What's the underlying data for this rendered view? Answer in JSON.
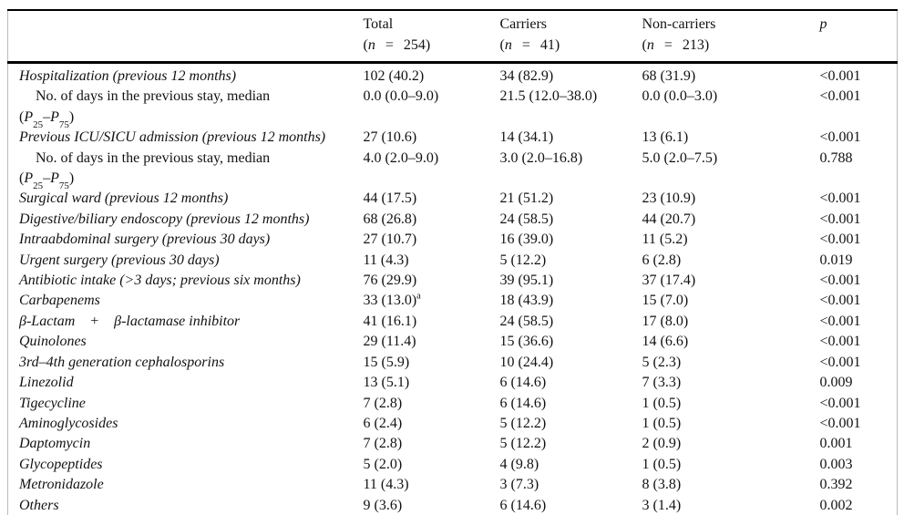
{
  "table": {
    "header": {
      "columns": [
        {
          "label": "Total",
          "n": "254"
        },
        {
          "label": "Carriers",
          "n": "41"
        },
        {
          "label": "Non-carriers",
          "n": "213"
        },
        {
          "label": "p"
        }
      ]
    },
    "symbols": {
      "open": "(",
      "n": "n",
      "eq": "=",
      "close": ")",
      "P": "P",
      "p25": "25",
      "dash": "–",
      "p75": "75"
    },
    "rows": [
      {
        "label": "Hospitalization (previous 12 months)",
        "italic": true,
        "indent": false,
        "wrap": false,
        "total": "102 (40.2)",
        "total_sup": "",
        "carriers": "34 (82.9)",
        "noncarriers": "68 (31.9)",
        "p": "<0.001"
      },
      {
        "label": "No. of days in the previous stay, median",
        "italic": false,
        "indent": true,
        "wrap": true,
        "total": "0.0 (0.0–9.0)",
        "total_sup": "",
        "carriers": "21.5 (12.0–38.0)",
        "noncarriers": "0.0 (0.0–3.0)",
        "p": "<0.001"
      },
      {
        "label": "Previous ICU/SICU admission (previous 12 months)",
        "italic": true,
        "indent": false,
        "wrap": false,
        "total": "27 (10.6)",
        "total_sup": "",
        "carriers": "14 (34.1)",
        "noncarriers": "13 (6.1)",
        "p": "<0.001"
      },
      {
        "label": "No. of days in the previous stay, median",
        "italic": false,
        "indent": true,
        "wrap": true,
        "total": "4.0 (2.0–9.0)",
        "total_sup": "",
        "carriers": "3.0 (2.0–16.8)",
        "noncarriers": "5.0 (2.0–7.5)",
        "p": "0.788"
      },
      {
        "label": "Surgical ward (previous 12 months)",
        "italic": true,
        "indent": false,
        "wrap": false,
        "total": "44 (17.5)",
        "total_sup": "",
        "carriers": "21 (51.2)",
        "noncarriers": "23 (10.9)",
        "p": "<0.001"
      },
      {
        "label": "Digestive/biliary endoscopy (previous 12 months)",
        "italic": true,
        "indent": false,
        "wrap": false,
        "total": "68 (26.8)",
        "total_sup": "",
        "carriers": "24 (58.5)",
        "noncarriers": "44 (20.7)",
        "p": "<0.001"
      },
      {
        "label": "Intraabdominal surgery (previous 30 days)",
        "italic": true,
        "indent": false,
        "wrap": false,
        "total": "27 (10.7)",
        "total_sup": "",
        "carriers": "16 (39.0)",
        "noncarriers": "11 (5.2)",
        "p": "<0.001"
      },
      {
        "label": "Urgent surgery (previous 30 days)",
        "italic": true,
        "indent": false,
        "wrap": false,
        "total": "11 (4.3)",
        "total_sup": "",
        "carriers": "5 (12.2)",
        "noncarriers": "6 (2.8)",
        "p": "0.019"
      },
      {
        "label": "Antibiotic intake (>3 days; previous six months)",
        "italic": true,
        "indent": false,
        "wrap": false,
        "total": "76 (29.9)",
        "total_sup": "",
        "carriers": "39 (95.1)",
        "noncarriers": "37 (17.4)",
        "p": "<0.001"
      },
      {
        "label": "Carbapenems",
        "italic": true,
        "indent": false,
        "wrap": false,
        "total": "33 (13.0)",
        "total_sup": "a",
        "carriers": "18 (43.9)",
        "noncarriers": "15 (7.0)",
        "p": "<0.001"
      },
      {
        "label": "β-Lactam + β-lactamase inhibitor",
        "italic": true,
        "indent": false,
        "wrap": false,
        "total": "41 (16.1)",
        "total_sup": "",
        "carriers": "24 (58.5)",
        "noncarriers": "17 (8.0)",
        "p": "<0.001"
      },
      {
        "label": "Quinolones",
        "italic": true,
        "indent": false,
        "wrap": false,
        "total": "29 (11.4)",
        "total_sup": "",
        "carriers": "15 (36.6)",
        "noncarriers": "14 (6.6)",
        "p": "<0.001"
      },
      {
        "label": "3rd–4th generation cephalosporins",
        "italic": true,
        "indent": false,
        "wrap": false,
        "total": "15 (5.9)",
        "total_sup": "",
        "carriers": "10 (24.4)",
        "noncarriers": "5 (2.3)",
        "p": "<0.001"
      },
      {
        "label": "Linezolid",
        "italic": true,
        "indent": false,
        "wrap": false,
        "total": "13 (5.1)",
        "total_sup": "",
        "carriers": "6 (14.6)",
        "noncarriers": "7 (3.3)",
        "p": "0.009"
      },
      {
        "label": "Tigecycline",
        "italic": true,
        "indent": false,
        "wrap": false,
        "total": "7 (2.8)",
        "total_sup": "",
        "carriers": "6 (14.6)",
        "noncarriers": "1 (0.5)",
        "p": "<0.001"
      },
      {
        "label": "Aminoglycosides",
        "italic": true,
        "indent": false,
        "wrap": false,
        "total": "6 (2.4)",
        "total_sup": "",
        "carriers": "5 (12.2)",
        "noncarriers": "1 (0.5)",
        "p": "<0.001"
      },
      {
        "label": "Daptomycin",
        "italic": true,
        "indent": false,
        "wrap": false,
        "total": "7 (2.8)",
        "total_sup": "",
        "carriers": "5 (12.2)",
        "noncarriers": "2 (0.9)",
        "p": "0.001"
      },
      {
        "label": "Glycopeptides",
        "italic": true,
        "indent": false,
        "wrap": false,
        "total": "5 (2.0)",
        "total_sup": "",
        "carriers": "4 (9.8)",
        "noncarriers": "1 (0.5)",
        "p": "0.003"
      },
      {
        "label": "Metronidazole",
        "italic": true,
        "indent": false,
        "wrap": false,
        "total": "11 (4.3)",
        "total_sup": "",
        "carriers": "3 (7.3)",
        "noncarriers": "8 (3.8)",
        "p": "0.392"
      },
      {
        "label": "Others",
        "italic": true,
        "indent": false,
        "wrap": false,
        "total": "9 (3.6)",
        "total_sup": "",
        "carriers": "6 (14.6)",
        "noncarriers": "3 (1.4)",
        "p": "0.002"
      }
    ]
  }
}
